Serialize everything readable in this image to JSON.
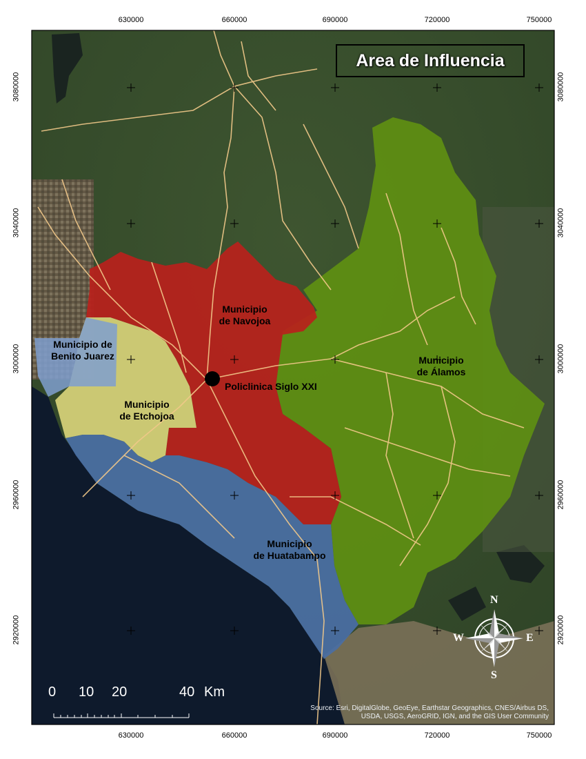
{
  "title": "Area de Influencia",
  "axes": {
    "x_ticks": [
      "630000",
      "660000",
      "690000",
      "720000",
      "750000"
    ],
    "y_ticks": [
      "3080000",
      "3040000",
      "3000000",
      "2960000",
      "2920000"
    ]
  },
  "regions": [
    {
      "name": "Municipio de Navojoa",
      "line1": "Municipio",
      "line2": "de Navojoa",
      "color": "#b8211c"
    },
    {
      "name": "Municipio de Álamos",
      "line1": "Municipio",
      "line2": "de Álamos",
      "color": "#5f8f12"
    },
    {
      "name": "Municipio de Etchojoa",
      "line1": "Municipio",
      "line2": "de Etchojoa",
      "color": "#d8d37a"
    },
    {
      "name": "Municipio de Benito Juarez",
      "line1": "Municipio de",
      "line2": "Benito Juarez",
      "color": "#7f9fcf"
    },
    {
      "name": "Municipio de Huatabampo",
      "line1": "Municipio",
      "line2": "de Huatabampo",
      "color": "#4a6fa5"
    }
  ],
  "point": {
    "label": "Policlinica Siglo XXI"
  },
  "scale_bar": {
    "labels": [
      "0",
      "10",
      "20",
      "40"
    ],
    "unit": "Km"
  },
  "compass": {
    "n": "N",
    "s": "S",
    "e": "E",
    "w": "W"
  },
  "attribution": "Source: Esri, DigitalGlobe, GeoEye, Earthstar Geographics, CNES/Airbus DS, USDA, USGS, AeroGRID, IGN, and the GIS User Community",
  "colors": {
    "roads": "#f2c98a",
    "sea": "#0e1a2c",
    "terrain": "#3f5a34"
  }
}
